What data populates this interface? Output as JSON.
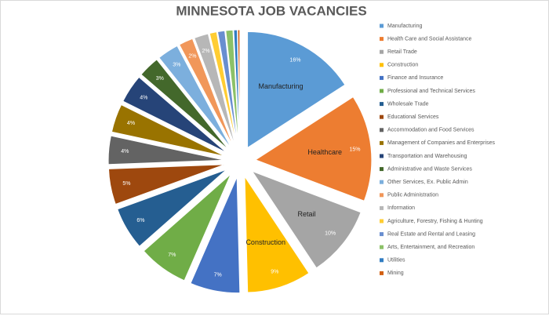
{
  "chart_data": {
    "type": "pie",
    "title": "MINNESOTA JOB VACANCIES",
    "categories": [
      "Manufacturing",
      "Health Care and Social Assistance",
      "Retail Trade",
      "Construction",
      "Finance and Insurance",
      "Professional and Technical Services",
      "Wholesale Trade",
      "Educational Services",
      "Accommodation and Food Services",
      "Management of Companies and Enterprises",
      "Transportation and Warehousing",
      "Administrative and Waste Services",
      "Other Services, Ex. Public Admin",
      "Public Administration",
      "Information",
      "Agriculture, Forestry, Fishing & Hunting",
      "Real Estate and Rental and Leasing",
      "Arts, Entertainment, and Recreation",
      "Utilities",
      "Mining"
    ],
    "values": [
      16,
      15,
      10,
      9,
      7,
      7,
      6,
      5,
      4,
      4,
      4,
      3,
      3,
      2,
      2,
      1,
      1,
      1,
      0.5,
      0.3
    ],
    "value_labels": [
      "16%",
      "15%",
      "10%",
      "9%",
      "7%",
      "7%",
      "6%",
      "5%",
      "4%",
      "4%",
      "4%",
      "3%",
      "3%",
      "2%",
      "2%",
      null,
      null,
      null,
      null,
      null
    ],
    "slice_names": [
      "Manufacturing",
      "Healthcare",
      "Retail",
      "Construction",
      null,
      null,
      null,
      null,
      null,
      null,
      null,
      null,
      null,
      null,
      null,
      null,
      null,
      null,
      null,
      null
    ],
    "colors": [
      "#5b9bd5",
      "#ed7d31",
      "#a5a5a5",
      "#ffc000",
      "#4472c4",
      "#70ad47",
      "#255e91",
      "#9e480e",
      "#636363",
      "#997300",
      "#264478",
      "#43682b",
      "#7cafdd",
      "#f1975a",
      "#b7b7b7",
      "#ffcd33",
      "#698ed0",
      "#8cc168",
      "#327dc2",
      "#d26012"
    ],
    "legend": "right"
  }
}
